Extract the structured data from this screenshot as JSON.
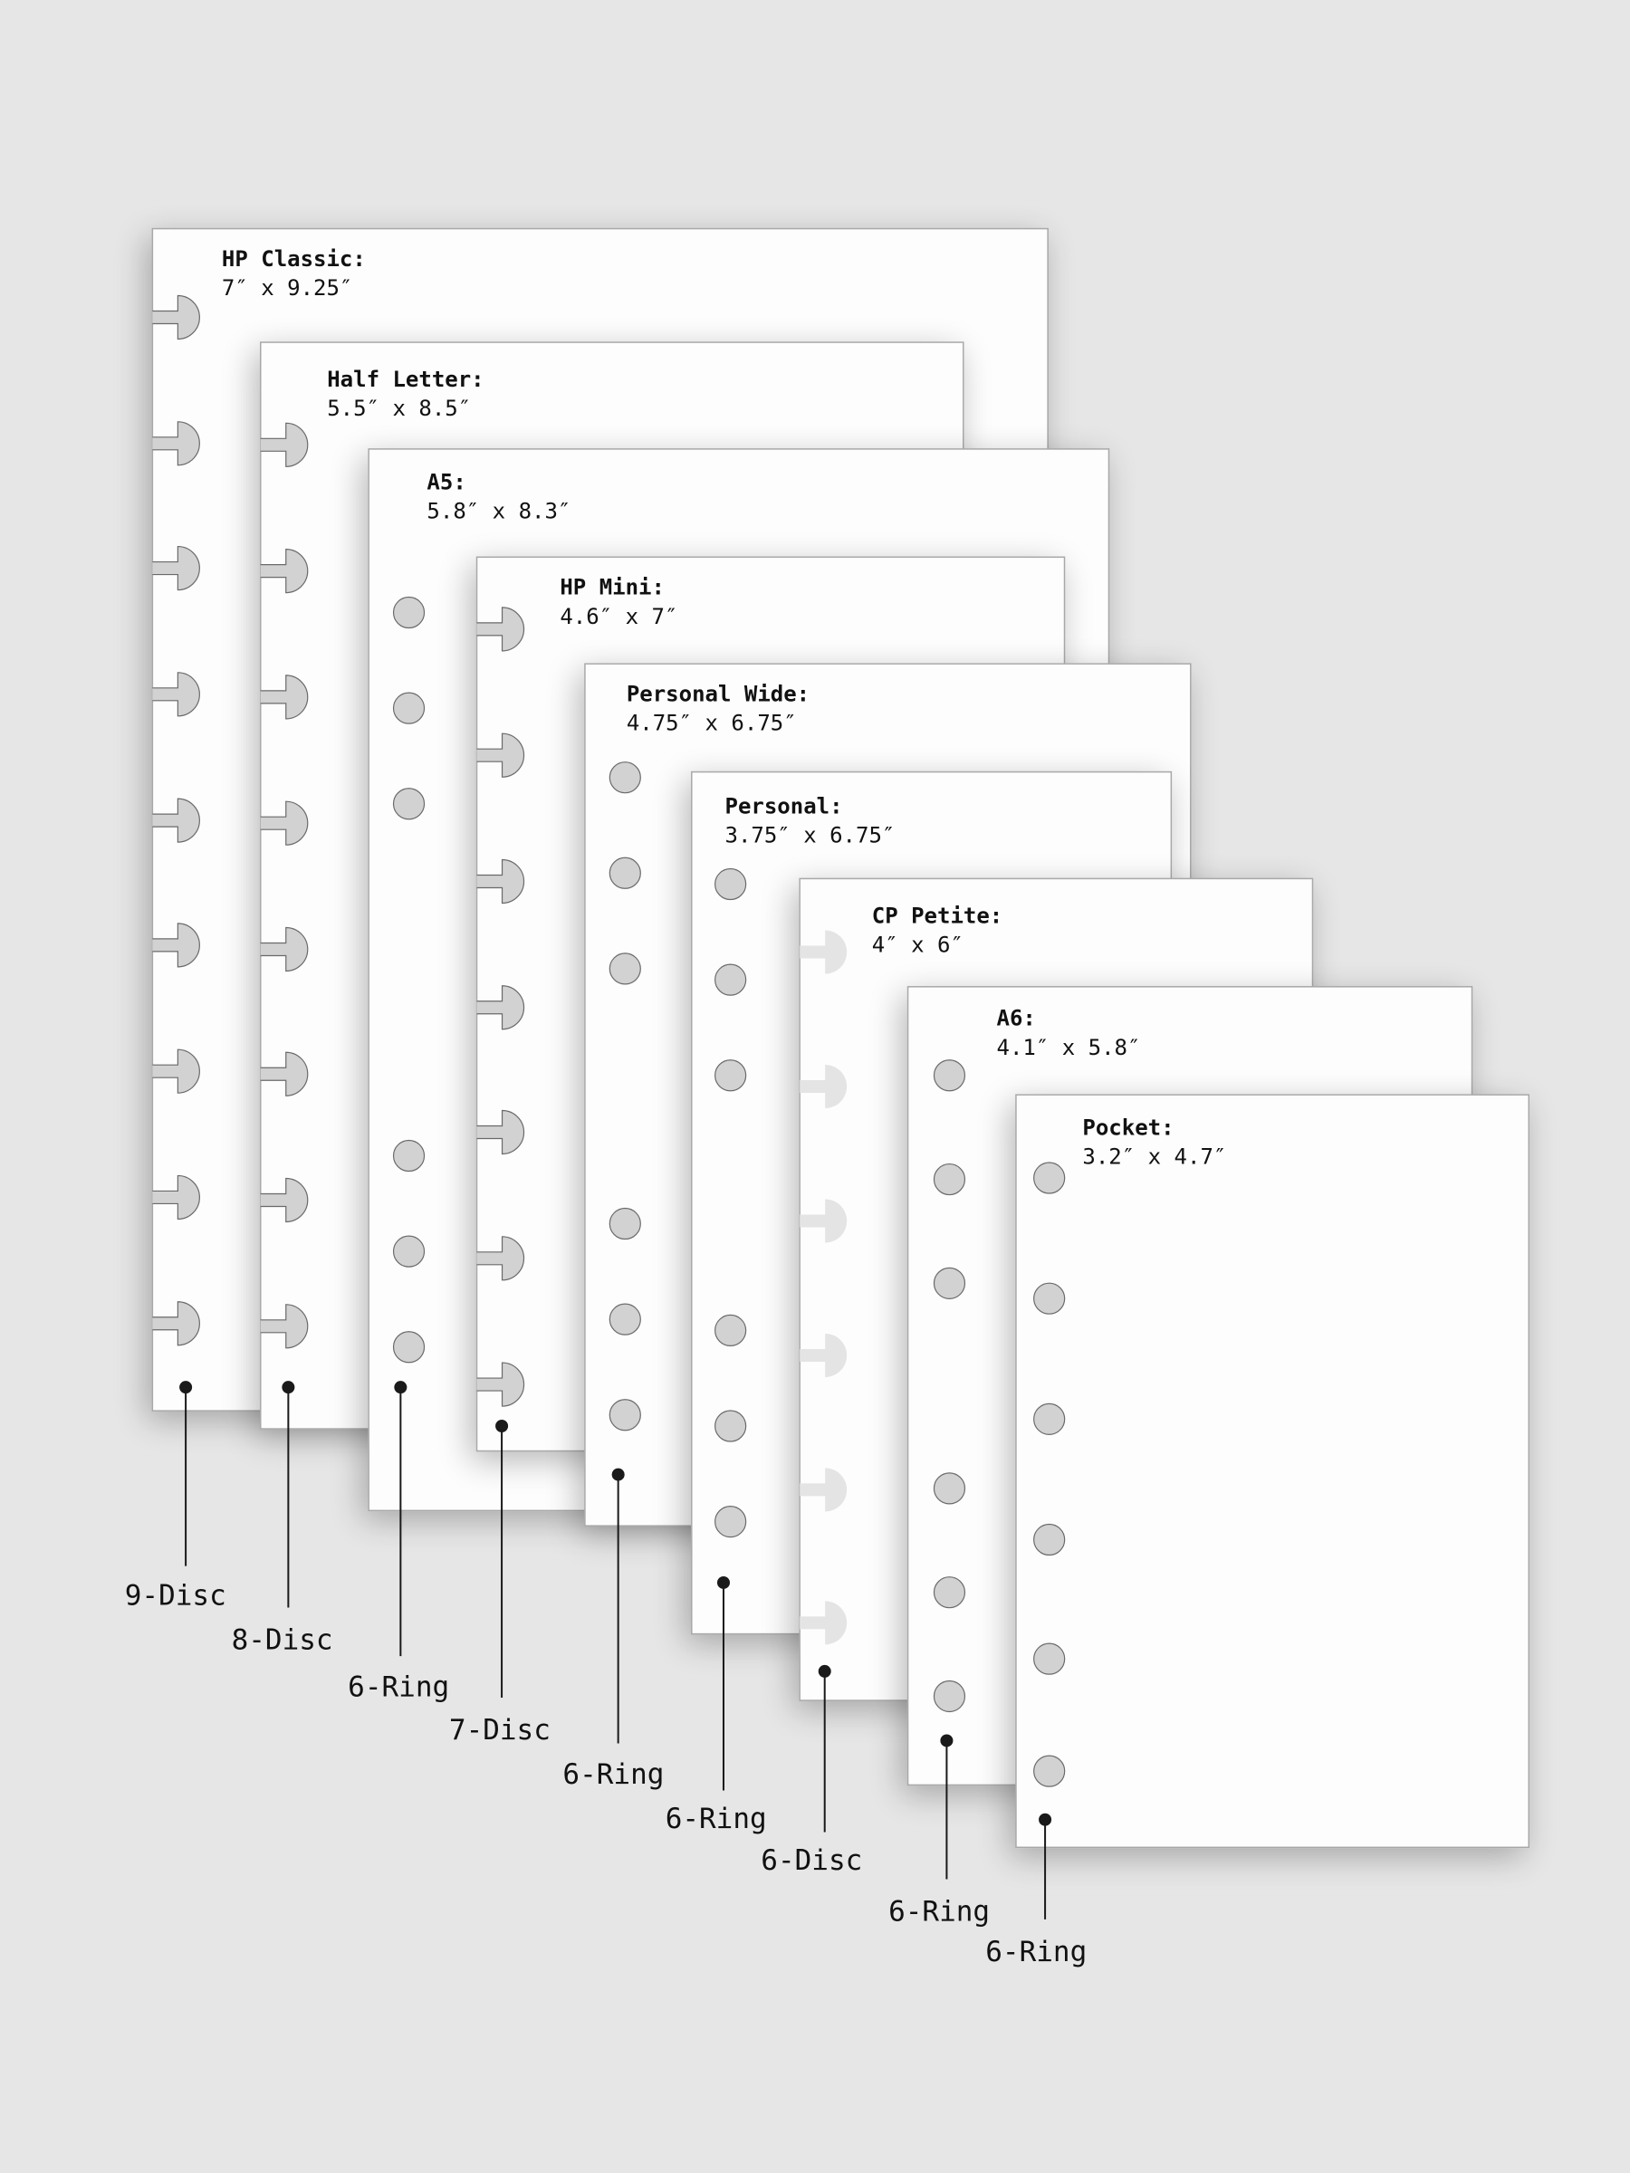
{
  "colors": {
    "background": "#e6e6e6",
    "sheet": "#fdfdfd",
    "sheet_border": "#a8a8a8",
    "hole": "#d2d2d2",
    "hole_border": "#6a6a6a",
    "leader": "#1a1a1a"
  },
  "sheets": [
    {
      "title": "HP Classic:",
      "size": "7″ x 9.25″",
      "binding": "9-Disc",
      "hole_type": "disc",
      "hole_count": 9
    },
    {
      "title": "Half Letter:",
      "size": "5.5″ x 8.5″",
      "binding": "8-Disc",
      "hole_type": "disc",
      "hole_count": 8
    },
    {
      "title": "A5:",
      "size": "5.8″ x 8.3″",
      "binding": "6-Ring",
      "hole_type": "ring",
      "hole_count": 6
    },
    {
      "title": "HP Mini:",
      "size": "4.6″ x 7″",
      "binding": "7-Disc",
      "hole_type": "disc",
      "hole_count": 7
    },
    {
      "title": "Personal Wide:",
      "size": "4.75″ x 6.75″",
      "binding": "6-Ring",
      "hole_type": "ring",
      "hole_count": 6
    },
    {
      "title": "Personal:",
      "size": "3.75″ x 6.75″",
      "binding": "6-Ring",
      "hole_type": "ring",
      "hole_count": 6
    },
    {
      "title": "CP Petite:",
      "size": "4″ x 6″",
      "binding": "6-Disc",
      "hole_type": "disc",
      "hole_count": 6
    },
    {
      "title": "A6:",
      "size": "4.1″ x 5.8″",
      "binding": "6-Ring",
      "hole_type": "ring",
      "hole_count": 6
    },
    {
      "title": "Pocket:",
      "size": "3.2″ x 4.7″",
      "binding": "6-Ring",
      "hole_type": "ring",
      "hole_count": 6
    }
  ]
}
